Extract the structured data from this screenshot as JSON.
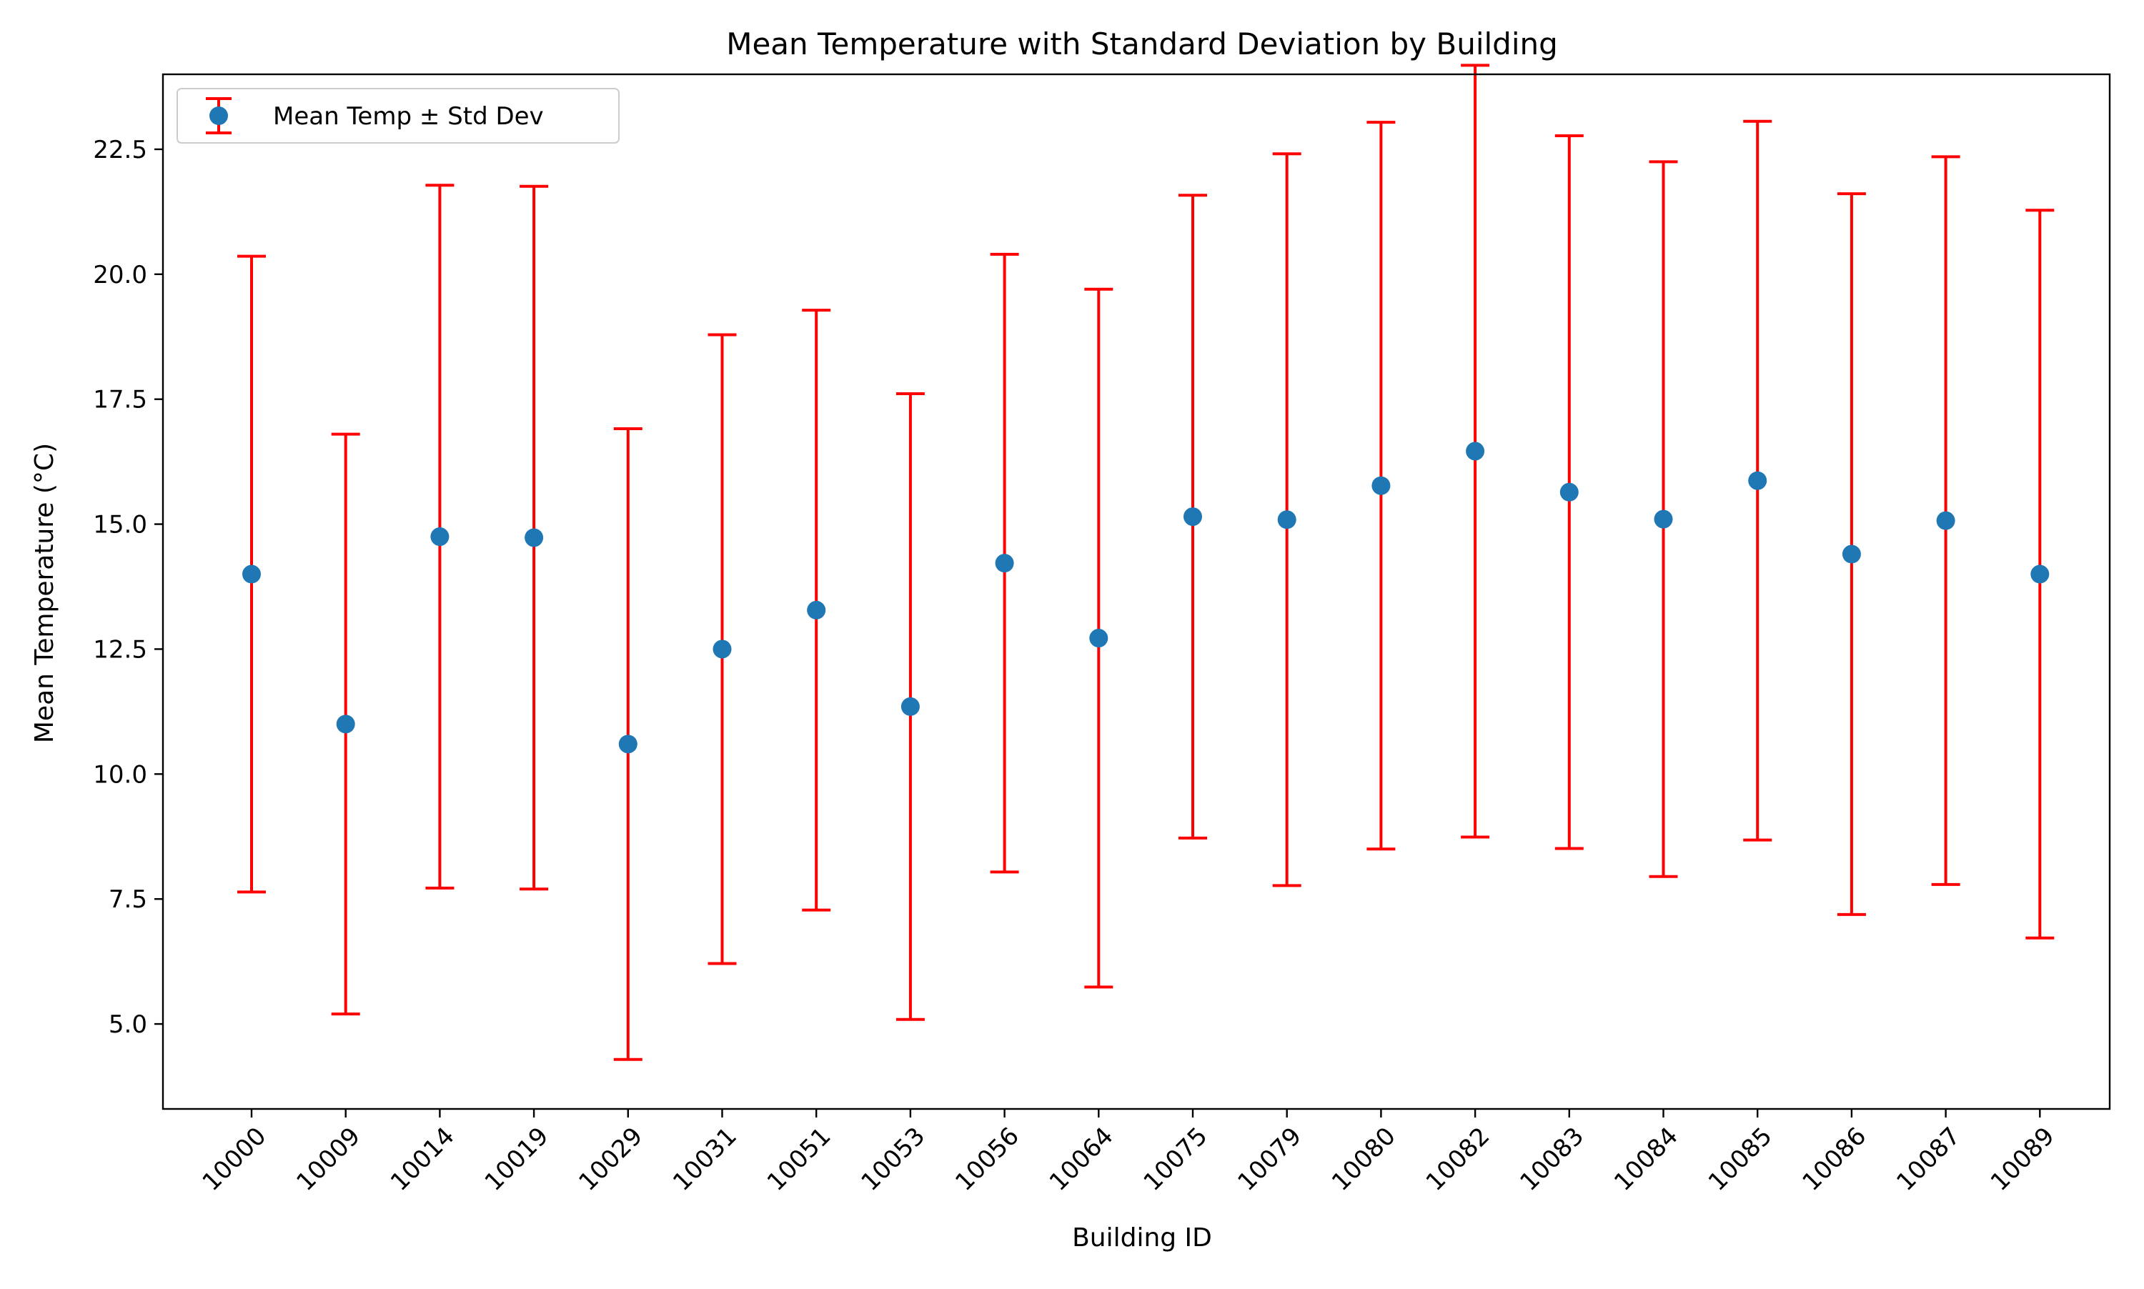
{
  "chart_data": {
    "type": "scatter",
    "title": "Mean Temperature with Standard Deviation by Building",
    "xlabel": "Building ID",
    "ylabel": "Mean Temperature (°C)",
    "categories": [
      "10000",
      "10009",
      "10014",
      "10019",
      "10029",
      "10031",
      "10051",
      "10053",
      "10056",
      "10064",
      "10075",
      "10079",
      "10080",
      "10082",
      "10083",
      "10084",
      "10085",
      "10086",
      "10087",
      "10089"
    ],
    "ylim": [
      3.3,
      24.0
    ],
    "yticks": [
      5.0,
      7.5,
      10.0,
      12.5,
      15.0,
      17.5,
      20.0,
      22.5
    ],
    "ytick_labels": [
      "5.0",
      "7.5",
      "10.0",
      "12.5",
      "15.0",
      "17.5",
      "20.0",
      "22.5"
    ],
    "grid": false,
    "legend_placement": "top-left",
    "series": [
      {
        "name": "Mean Temp ± Std Dev",
        "values": [
          14.0,
          11.0,
          14.75,
          14.73,
          10.6,
          12.5,
          13.28,
          11.35,
          14.22,
          12.72,
          15.15,
          15.09,
          15.77,
          16.46,
          15.64,
          15.1,
          15.87,
          14.4,
          15.07,
          14.0
        ],
        "std": [
          6.36,
          5.8,
          7.03,
          7.03,
          6.31,
          6.29,
          6.0,
          6.26,
          6.18,
          6.98,
          6.43,
          7.32,
          7.27,
          7.72,
          7.13,
          7.15,
          7.19,
          7.21,
          7.28,
          7.28
        ]
      }
    ],
    "colors": {
      "marker": "#1f77b4",
      "errorbar": "#ff0000"
    }
  }
}
